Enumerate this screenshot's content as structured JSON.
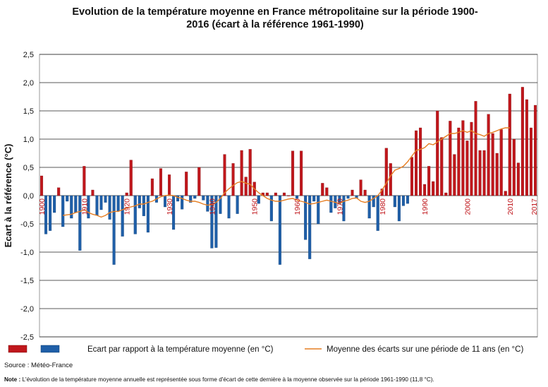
{
  "title_line1": "Evolution de la température moyenne en France métropolitaine  sur la période 1900-",
  "title_line2": "2016 (écart à la référence 1961-1990)",
  "chart_data": {
    "type": "bar",
    "title": "Evolution de la température moyenne en France métropolitaine sur la période 1900-2016 (écart à la référence 1961-1990)",
    "ylabel": "Ecart à la référence (°C)",
    "ylim": [
      -2.5,
      2.5
    ],
    "yticks": [
      2.5,
      2.0,
      1.5,
      1.0,
      0.5,
      0.0,
      -0.5,
      -1.0,
      -1.5,
      -2.0,
      -2.5
    ],
    "ytick_labels": [
      "2,5",
      "2,0",
      "1,5",
      "1,0",
      "0,5",
      "0,0",
      "-0,5",
      "-1,0",
      "-1,5",
      "-2,0",
      "-2,5"
    ],
    "xtick_labels": [
      "1900",
      "1910",
      "1920",
      "1930",
      "1940",
      "1950",
      "1960",
      "1970",
      "1980",
      "1990",
      "2000",
      "2010",
      "2017"
    ],
    "x_start": 1900,
    "x_end": 2016,
    "grid": true,
    "positive_color": "#c0171c",
    "negative_color": "#1f5fa8",
    "line_color": "#e67e22",
    "series": [
      {
        "name": "Ecart par rapport à la température moyenne (en °C)",
        "type": "bar",
        "values": [
          0.35,
          -0.68,
          -0.62,
          -0.3,
          0.14,
          -0.55,
          -0.1,
          -0.4,
          -0.3,
          -0.97,
          0.52,
          -0.4,
          0.1,
          -0.35,
          -0.25,
          -0.12,
          -0.42,
          -1.22,
          -0.28,
          -0.72,
          0.05,
          0.63,
          -0.68,
          -0.22,
          -0.36,
          -0.65,
          0.3,
          -0.12,
          0.48,
          -0.2,
          0.37,
          -0.6,
          -0.1,
          -0.24,
          0.42,
          -0.12,
          -0.05,
          0.5,
          -0.08,
          -0.28,
          -0.93,
          -0.92,
          -0.32,
          0.73,
          -0.4,
          0.57,
          -0.32,
          0.8,
          0.33,
          0.82,
          0.24,
          -0.14,
          0.05,
          0.05,
          -0.45,
          0.05,
          -1.22,
          0.05,
          0.0,
          0.79,
          -0.05,
          0.79,
          -0.78,
          -1.12,
          -0.1,
          -0.5,
          0.22,
          0.14,
          -0.3,
          -0.22,
          -0.15,
          -0.45,
          -0.05,
          0.1,
          -0.05,
          0.28,
          0.1,
          -0.4,
          -0.2,
          -0.62,
          0.12,
          0.84,
          0.57,
          -0.2,
          -0.45,
          -0.18,
          -0.14,
          0.68,
          1.15,
          1.2,
          0.2,
          0.52,
          0.25,
          1.5,
          1.03,
          0.05,
          1.32,
          0.73,
          1.2,
          1.33,
          0.97,
          1.3,
          1.67,
          0.8,
          0.8,
          1.44,
          1.1,
          0.75,
          1.17,
          0.08,
          1.8,
          1.0,
          0.58,
          1.92,
          1.7,
          1.2,
          1.6
        ]
      },
      {
        "name": "Moyenne des écarts sur une période de 11 ans (en °C)",
        "type": "line",
        "values": [
          null,
          null,
          null,
          null,
          null,
          -0.35,
          -0.34,
          -0.33,
          -0.3,
          -0.28,
          -0.25,
          -0.3,
          -0.33,
          -0.35,
          -0.38,
          -0.35,
          -0.3,
          -0.28,
          -0.28,
          -0.25,
          -0.22,
          -0.2,
          -0.18,
          -0.15,
          -0.15,
          -0.12,
          -0.1,
          -0.06,
          -0.02,
          0.0,
          0.01,
          0.0,
          -0.03,
          -0.05,
          -0.08,
          -0.1,
          -0.1,
          -0.12,
          -0.15,
          -0.17,
          -0.16,
          -0.12,
          -0.05,
          0.05,
          0.12,
          0.18,
          0.23,
          0.25,
          0.22,
          0.2,
          0.12,
          0.05,
          0.0,
          -0.05,
          -0.08,
          -0.1,
          -0.1,
          -0.08,
          -0.06,
          -0.05,
          -0.08,
          -0.1,
          -0.12,
          -0.15,
          -0.14,
          -0.12,
          -0.1,
          -0.08,
          -0.1,
          -0.12,
          -0.14,
          -0.1,
          -0.08,
          -0.05,
          -0.04,
          -0.1,
          -0.12,
          -0.1,
          -0.05,
          0.0,
          0.1,
          0.22,
          0.35,
          0.45,
          0.48,
          0.52,
          0.6,
          0.7,
          0.8,
          0.82,
          0.85,
          0.92,
          0.9,
          0.95,
          1.0,
          1.05,
          1.1,
          1.1,
          1.12,
          1.15,
          1.12,
          1.15,
          1.1,
          1.08,
          1.05,
          1.1,
          1.12,
          1.15,
          1.18,
          1.2,
          1.2,
          null,
          null,
          null,
          null,
          null,
          null
        ]
      }
    ],
    "legend": {
      "bar_label": "Ecart par rapport à la température moyenne (en °C)",
      "line_label": "Moyenne des écarts sur une période de 11 ans (en °C)",
      "placement": "bottom"
    }
  },
  "source": "Source : Météo-France",
  "note_label": "Note :",
  "note_text": " L'évolution de la température moyenne annuelle est représentée sous forme d'écart de cette dernière à la moyenne observée sur la période 1961-1990 (11,8 °C)."
}
